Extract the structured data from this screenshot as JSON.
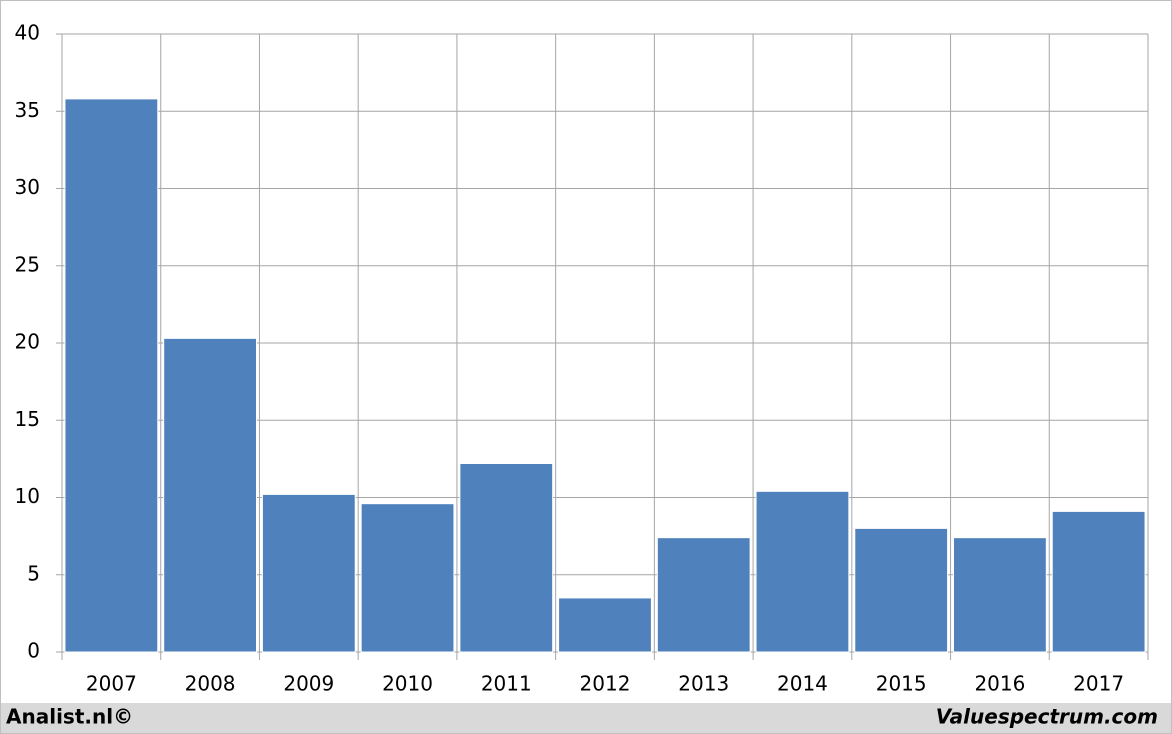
{
  "chart_data": {
    "type": "bar",
    "categories": [
      "2007",
      "2008",
      "2009",
      "2010",
      "2011",
      "2012",
      "2013",
      "2014",
      "2015",
      "2016",
      "2017"
    ],
    "values": [
      35.8,
      20.3,
      10.2,
      9.6,
      12.2,
      3.5,
      7.4,
      10.4,
      8.0,
      7.4,
      9.1
    ],
    "color": "#4f81bd",
    "ylim": [
      0,
      40
    ],
    "yticks": [
      0,
      5,
      10,
      15,
      20,
      25,
      30,
      35,
      40
    ],
    "grid": true,
    "footer_left": "Analist.nl©",
    "footer_right": "Valuespectrum.com"
  }
}
